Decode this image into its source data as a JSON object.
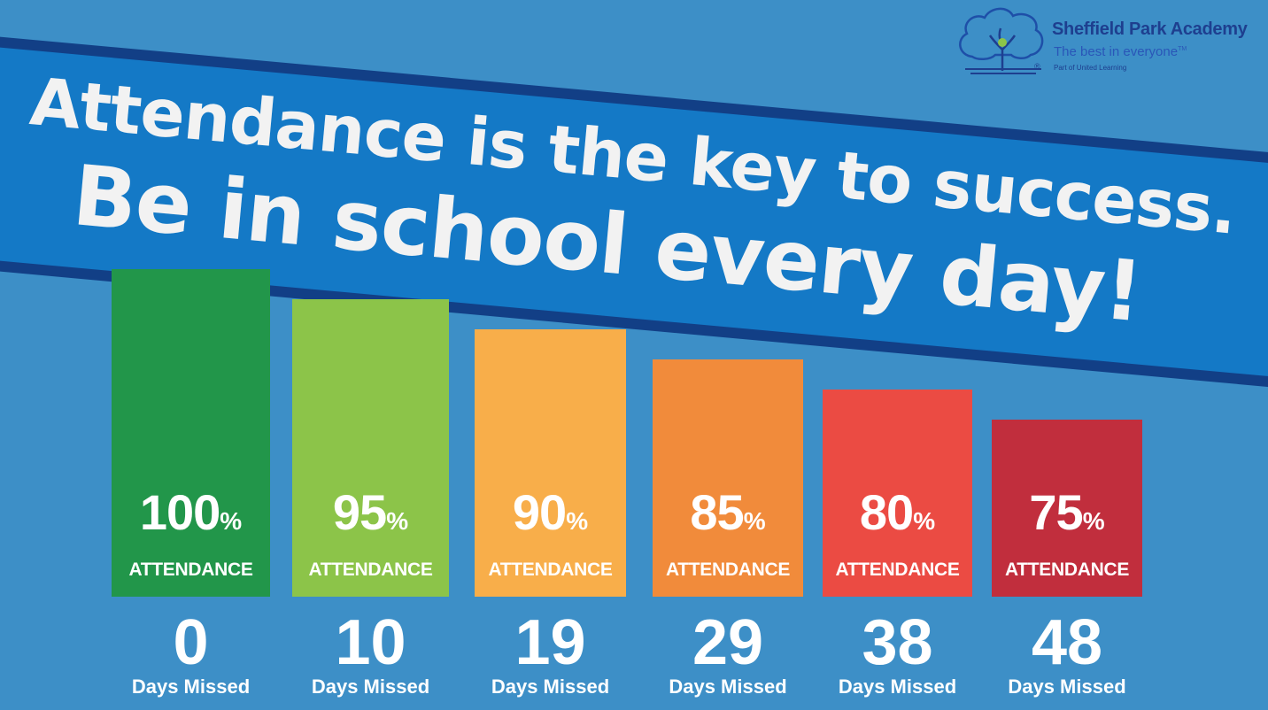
{
  "header": {
    "line1": "Attendance is the key to success.",
    "line2": "Be in school every day!"
  },
  "logo": {
    "name": "Sheffield Park Academy",
    "tagline": "The best in everyone",
    "tagline_mark": "TM",
    "sub": "Part of United Learning",
    "registered": "®"
  },
  "colors": {
    "background": "#3d8fc7",
    "banner": "#1479c6",
    "banner_border": "#123f86"
  },
  "chart_data": {
    "type": "bar",
    "title": "",
    "categories": [
      "0",
      "10",
      "19",
      "29",
      "38",
      "48"
    ],
    "category_unit": "Days Missed",
    "values": [
      100,
      95,
      90,
      85,
      80,
      75
    ],
    "value_suffix": "%",
    "value_label": "ATTENDANCE",
    "colors": [
      "#22964a",
      "#8cc449",
      "#f8ae4a",
      "#f18b3b",
      "#eb4b43",
      "#c12e3d"
    ],
    "ylim": [
      0,
      100
    ],
    "grid": false,
    "legend": "none"
  }
}
